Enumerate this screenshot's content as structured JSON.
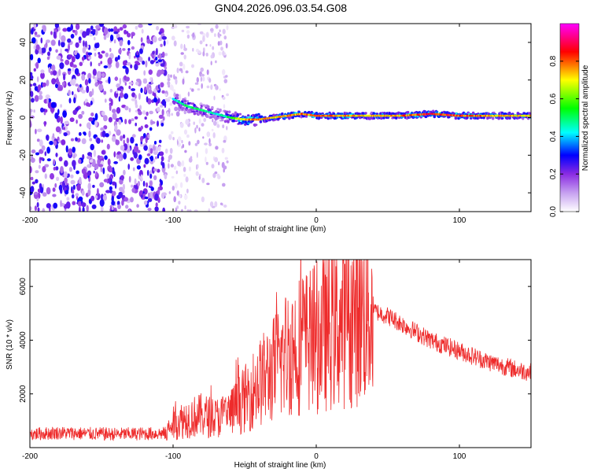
{
  "figure": {
    "title": "GN04.2026.096.03.54.G08"
  },
  "chart_data": [
    {
      "type": "heatmap",
      "title": "GN04.2026.096.03.54.G08",
      "xlabel": "Height of straight line (km)",
      "ylabel": "Frequency (Hz)",
      "xlim": [
        -200,
        150
      ],
      "ylim": [
        -50,
        50
      ],
      "xticks": [
        "-200",
        "-100",
        "0",
        "100"
      ],
      "yticks": [
        "-40",
        "-20",
        "0",
        "20",
        "40"
      ],
      "colorbar": {
        "label": "Normalized spectral amplitude",
        "range": [
          0,
          1
        ],
        "ticks": [
          "0.0",
          "0.2",
          "0.4",
          "0.6",
          "0.8"
        ],
        "colormap": [
          "#ffffff",
          "#8a2be2",
          "#0000ff",
          "#00ffff",
          "#00ff00",
          "#ffff00",
          "#ff0000",
          "#ff00ff"
        ]
      },
      "signal_track": {
        "x": [
          -100,
          -90,
          -80,
          -70,
          -60,
          -50,
          -40,
          -30,
          -20,
          -10,
          0,
          20,
          40,
          60,
          80,
          100,
          120,
          150
        ],
        "frequency": [
          10,
          6,
          4,
          2,
          0,
          -1,
          -1,
          0,
          1,
          2,
          1,
          1,
          1,
          1,
          2,
          1,
          1,
          1
        ],
        "amplitude": [
          0.45,
          0.55,
          0.5,
          0.45,
          0.55,
          0.8,
          0.85,
          0.75,
          0.8,
          0.8,
          0.85,
          0.8,
          0.75,
          0.8,
          0.9,
          0.85,
          0.8,
          0.75
        ]
      },
      "noise_region": {
        "x_range": [
          -200,
          -105
        ],
        "frequency_range": [
          -50,
          50
        ],
        "amplitude": 0.25
      },
      "sparse_noise_region": {
        "x_range": [
          -105,
          -62
        ],
        "frequency_range": [
          -50,
          50
        ],
        "amplitude": 0.1
      }
    },
    {
      "type": "line",
      "xlabel": "Height of straight line (km)",
      "ylabel": "SNR (10 * v/v)",
      "xlim": [
        -200,
        150
      ],
      "ylim": [
        0,
        7000
      ],
      "xticks": [
        "-200",
        "-100",
        "0",
        "100"
      ],
      "yticks": [
        "2000",
        "4000",
        "6000"
      ],
      "color": "#ee2b2b",
      "series": [
        {
          "x": [
            -200,
            -180,
            -160,
            -140,
            -120,
            -105,
            -100,
            -90,
            -80,
            -70,
            -60,
            -50,
            -40,
            -30,
            -20,
            -10,
            0,
            10,
            20,
            30,
            40,
            50,
            60,
            80,
            100,
            120,
            140,
            150
          ],
          "values": [
            500,
            550,
            520,
            500,
            520,
            530,
            900,
            1100,
            1200,
            1100,
            1300,
            1800,
            2400,
            2900,
            3600,
            3900,
            4100,
            4400,
            4700,
            4950,
            5100,
            4900,
            4600,
            4000,
            3600,
            3200,
            2900,
            2800
          ]
        }
      ]
    }
  ]
}
